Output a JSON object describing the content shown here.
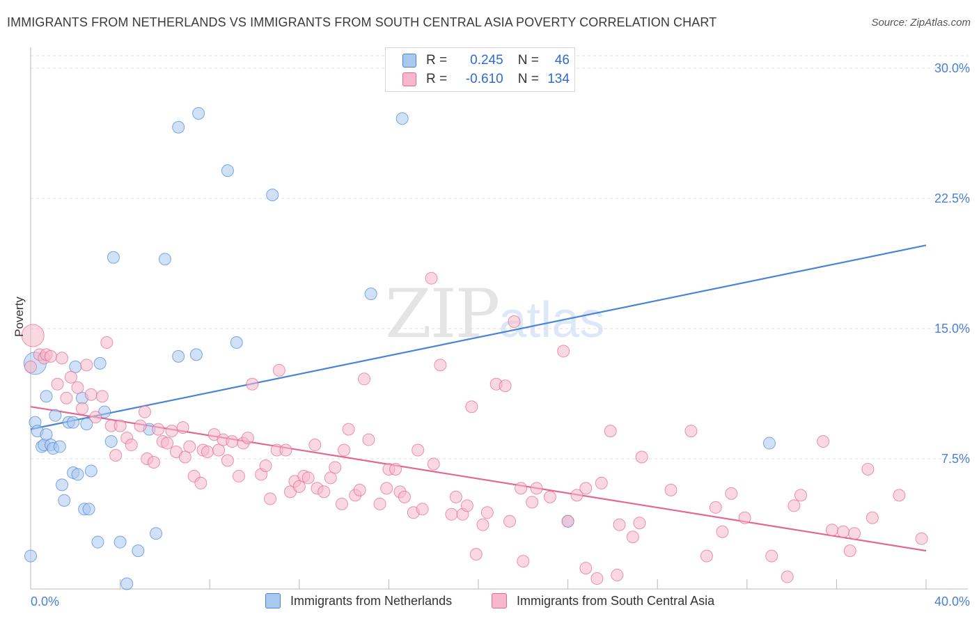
{
  "title": "IMMIGRANTS FROM NETHERLANDS VS IMMIGRANTS FROM SOUTH CENTRAL ASIA POVERTY CORRELATION CHART",
  "source": "Source: ZipAtlas.com",
  "watermark": {
    "zip": "ZIP",
    "atlas": "atlas"
  },
  "legend": {
    "rows": [
      {
        "r_label": "R =",
        "r_value": "0.245",
        "n_label": "N =",
        "n_value": "46",
        "color": "#a9c8f0"
      },
      {
        "r_label": "R =",
        "r_value": "-0.610",
        "n_label": "N =",
        "n_value": "134",
        "color": "#f6b8ca"
      }
    ]
  },
  "bottom_legend": [
    {
      "label": "Immigrants from Netherlands",
      "color": "#a9c8f0"
    },
    {
      "label": "Immigrants from South Central Asia",
      "color": "#f6b8ca"
    }
  ],
  "chart_data": {
    "type": "scatter",
    "title": "IMMIGRANTS FROM NETHERLANDS VS IMMIGRANTS FROM SOUTH CENTRAL ASIA POVERTY CORRELATION CHART",
    "xlabel": "",
    "ylabel": "Poverty",
    "xlim": [
      0,
      40
    ],
    "ylim": [
      0,
      30
    ],
    "x_tick_labels": [
      "0.0%",
      "40.0%"
    ],
    "y_ticks": [
      7.5,
      15.0,
      22.5,
      30.0
    ],
    "y_tick_labels": [
      "7.5%",
      "15.0%",
      "22.5%",
      "30.0%"
    ],
    "grid": true,
    "legend_position": "top-center",
    "series": [
      {
        "name": "Immigrants from Netherlands",
        "color": "#4a84d6",
        "fill": "#a9c8f0",
        "trend": {
          "x": [
            0,
            40
          ],
          "y": [
            9.2,
            19.8
          ]
        },
        "points": [
          [
            0.2,
            13.0
          ],
          [
            0.2,
            9.6
          ],
          [
            0.3,
            9.1
          ],
          [
            0.5,
            8.2
          ],
          [
            0.6,
            8.3
          ],
          [
            0.7,
            8.9
          ],
          [
            0.7,
            11.1
          ],
          [
            0.9,
            8.3
          ],
          [
            1.0,
            8.1
          ],
          [
            1.1,
            10.0
          ],
          [
            1.3,
            8.2
          ],
          [
            1.4,
            6.0
          ],
          [
            1.5,
            5.1
          ],
          [
            1.7,
            9.6
          ],
          [
            1.9,
            9.6
          ],
          [
            1.9,
            6.7
          ],
          [
            2.0,
            12.8
          ],
          [
            2.1,
            6.6
          ],
          [
            2.3,
            11.0
          ],
          [
            2.4,
            4.6
          ],
          [
            2.5,
            9.5
          ],
          [
            2.6,
            4.6
          ],
          [
            2.7,
            6.8
          ],
          [
            3.0,
            2.7
          ],
          [
            3.1,
            13.0
          ],
          [
            3.3,
            10.2
          ],
          [
            3.6,
            8.5
          ],
          [
            3.7,
            19.1
          ],
          [
            4.0,
            2.7
          ],
          [
            4.3,
            0.3
          ],
          [
            4.8,
            2.2
          ],
          [
            5.3,
            9.2
          ],
          [
            5.6,
            3.2
          ],
          [
            6.0,
            19.0
          ],
          [
            6.6,
            13.4
          ],
          [
            6.6,
            26.6
          ],
          [
            7.4,
            13.5
          ],
          [
            7.5,
            27.4
          ],
          [
            8.8,
            24.1
          ],
          [
            9.2,
            14.2
          ],
          [
            10.8,
            22.7
          ],
          [
            15.2,
            17.0
          ],
          [
            16.6,
            27.1
          ],
          [
            24.0,
            3.9
          ],
          [
            33.0,
            8.4
          ],
          [
            0.0,
            1.9
          ]
        ]
      },
      {
        "name": "Immigrants from South Central Asia",
        "color": "#e2688f",
        "fill": "#f6b8ca",
        "trend": {
          "x": [
            0,
            40
          ],
          "y": [
            10.5,
            2.2
          ]
        },
        "points": [
          [
            0.1,
            14.6
          ],
          [
            0.4,
            13.5
          ],
          [
            0.6,
            13.3
          ],
          [
            0.7,
            13.5
          ],
          [
            0.9,
            13.4
          ],
          [
            1.2,
            11.8
          ],
          [
            1.4,
            13.3
          ],
          [
            1.6,
            11.0
          ],
          [
            1.8,
            12.2
          ],
          [
            2.1,
            11.6
          ],
          [
            2.3,
            10.4
          ],
          [
            2.5,
            12.9
          ],
          [
            2.7,
            11.2
          ],
          [
            2.9,
            9.9
          ],
          [
            3.2,
            11.1
          ],
          [
            3.4,
            14.2
          ],
          [
            3.6,
            9.4
          ],
          [
            3.8,
            7.7
          ],
          [
            4.0,
            9.4
          ],
          [
            4.3,
            8.7
          ],
          [
            4.5,
            8.3
          ],
          [
            4.9,
            9.4
          ],
          [
            5.1,
            10.2
          ],
          [
            5.2,
            7.5
          ],
          [
            5.5,
            7.3
          ],
          [
            5.7,
            9.2
          ],
          [
            5.9,
            8.5
          ],
          [
            6.1,
            8.4
          ],
          [
            6.3,
            9.1
          ],
          [
            6.5,
            7.9
          ],
          [
            6.8,
            9.3
          ],
          [
            6.9,
            7.6
          ],
          [
            7.1,
            8.2
          ],
          [
            7.3,
            6.5
          ],
          [
            7.6,
            6.1
          ],
          [
            7.7,
            8.0
          ],
          [
            7.9,
            7.9
          ],
          [
            8.2,
            8.9
          ],
          [
            8.4,
            8.0
          ],
          [
            8.6,
            8.6
          ],
          [
            8.8,
            7.4
          ],
          [
            9.0,
            8.5
          ],
          [
            9.3,
            6.5
          ],
          [
            9.5,
            8.4
          ],
          [
            9.7,
            8.7
          ],
          [
            9.9,
            11.8
          ],
          [
            10.3,
            6.6
          ],
          [
            10.5,
            7.1
          ],
          [
            10.7,
            5.2
          ],
          [
            11.0,
            8.0
          ],
          [
            11.1,
            12.6
          ],
          [
            11.4,
            8.0
          ],
          [
            11.6,
            5.6
          ],
          [
            11.8,
            6.2
          ],
          [
            12.0,
            5.9
          ],
          [
            12.2,
            6.5
          ],
          [
            12.4,
            6.4
          ],
          [
            12.7,
            8.3
          ],
          [
            12.8,
            5.8
          ],
          [
            13.1,
            5.6
          ],
          [
            13.4,
            6.4
          ],
          [
            13.6,
            7.0
          ],
          [
            13.9,
            4.9
          ],
          [
            14.0,
            8.0
          ],
          [
            14.2,
            9.2
          ],
          [
            14.5,
            5.4
          ],
          [
            14.7,
            5.7
          ],
          [
            14.9,
            12.1
          ],
          [
            15.1,
            8.6
          ],
          [
            15.6,
            4.9
          ],
          [
            15.9,
            5.8
          ],
          [
            16.0,
            6.9
          ],
          [
            16.3,
            6.9
          ],
          [
            16.5,
            5.6
          ],
          [
            16.7,
            5.3
          ],
          [
            17.1,
            4.4
          ],
          [
            17.3,
            8.0
          ],
          [
            17.5,
            4.6
          ],
          [
            17.9,
            17.9
          ],
          [
            18.0,
            7.2
          ],
          [
            18.3,
            12.9
          ],
          [
            18.8,
            4.3
          ],
          [
            19.0,
            5.3
          ],
          [
            19.3,
            4.3
          ],
          [
            19.5,
            4.8
          ],
          [
            19.7,
            10.5
          ],
          [
            19.9,
            2.0
          ],
          [
            20.2,
            3.7
          ],
          [
            20.4,
            4.4
          ],
          [
            20.8,
            11.8
          ],
          [
            21.2,
            11.7
          ],
          [
            21.4,
            3.9
          ],
          [
            21.6,
            15.4
          ],
          [
            21.9,
            5.8
          ],
          [
            22.0,
            1.6
          ],
          [
            22.4,
            5.0
          ],
          [
            22.6,
            5.8
          ],
          [
            23.2,
            5.3
          ],
          [
            23.8,
            13.7
          ],
          [
            24.0,
            3.9
          ],
          [
            24.4,
            5.4
          ],
          [
            24.8,
            5.8
          ],
          [
            24.8,
            1.2
          ],
          [
            25.3,
            0.6
          ],
          [
            25.5,
            6.1
          ],
          [
            25.9,
            9.1
          ],
          [
            26.2,
            0.8
          ],
          [
            26.3,
            3.7
          ],
          [
            26.9,
            3.0
          ],
          [
            27.2,
            3.8
          ],
          [
            27.3,
            7.6
          ],
          [
            28.6,
            5.7
          ],
          [
            29.5,
            9.1
          ],
          [
            30.2,
            1.9
          ],
          [
            30.6,
            4.7
          ],
          [
            30.9,
            3.3
          ],
          [
            31.3,
            5.5
          ],
          [
            31.9,
            4.1
          ],
          [
            33.1,
            1.9
          ],
          [
            33.8,
            0.7
          ],
          [
            34.1,
            4.8
          ],
          [
            34.4,
            5.4
          ],
          [
            35.4,
            8.5
          ],
          [
            35.8,
            3.4
          ],
          [
            36.3,
            3.3
          ],
          [
            36.6,
            2.2
          ],
          [
            36.8,
            3.2
          ],
          [
            37.4,
            6.9
          ],
          [
            37.6,
            4.1
          ],
          [
            38.8,
            5.4
          ],
          [
            39.8,
            2.9
          ],
          [
            0.0,
            12.8
          ]
        ]
      }
    ]
  }
}
